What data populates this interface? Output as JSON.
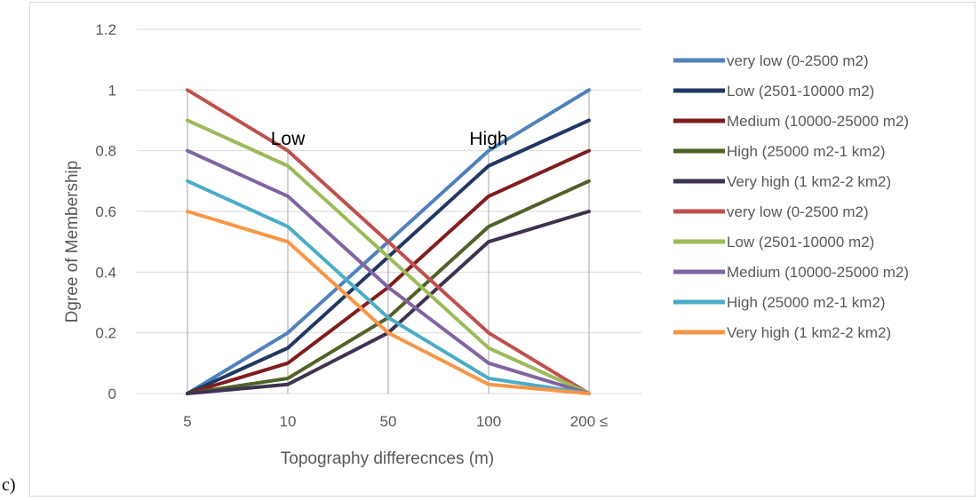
{
  "panel_label": "c)",
  "chart_data": {
    "type": "line",
    "title": "",
    "xlabel": "Topography differecnces (m)",
    "ylabel": "Dgree of Membership",
    "categories": [
      "5",
      "10",
      "50",
      "100",
      "200 ≤"
    ],
    "ylim": [
      0,
      1.2
    ],
    "yticks": [
      "0",
      "0.2",
      "0.4",
      "0.6",
      "0.8",
      "1",
      "1.2"
    ],
    "grid": "horizontal and vertical",
    "legend_position": "right",
    "annotations": [
      {
        "text": "Low",
        "x": "10",
        "y": 0.82
      },
      {
        "text": "High",
        "x": "100",
        "y": 0.82
      }
    ],
    "series": [
      {
        "name": "very low (0-2500 m2)",
        "color": "#4f81bd",
        "values": [
          0,
          0.2,
          0.5,
          0.8,
          1.0
        ]
      },
      {
        "name": "Low (2501-10000 m2)",
        "color": "#1f3864",
        "values": [
          0,
          0.15,
          0.45,
          0.75,
          0.9
        ]
      },
      {
        "name": "Medium (10000-25000 m2)",
        "color": "#7f1d1d",
        "values": [
          0,
          0.1,
          0.35,
          0.65,
          0.8
        ]
      },
      {
        "name": "High (25000 m2-1 km2)",
        "color": "#4f6228",
        "values": [
          0,
          0.05,
          0.25,
          0.55,
          0.7
        ]
      },
      {
        "name": "Very high (1 km2-2 km2)",
        "color": "#3f3151",
        "values": [
          0,
          0.03,
          0.2,
          0.5,
          0.6
        ]
      },
      {
        "name": "very low (0-2500 m2)",
        "color": "#c0504d",
        "values": [
          1.0,
          0.8,
          0.5,
          0.2,
          0
        ]
      },
      {
        "name": "Low (2501-10000 m2)",
        "color": "#9bbb59",
        "values": [
          0.9,
          0.75,
          0.45,
          0.15,
          0
        ]
      },
      {
        "name": "Medium (10000-25000 m2)",
        "color": "#8064a2",
        "values": [
          0.8,
          0.65,
          0.35,
          0.1,
          0
        ]
      },
      {
        "name": "High (25000 m2-1 km2)",
        "color": "#4bacc6",
        "values": [
          0.7,
          0.55,
          0.25,
          0.05,
          0
        ]
      },
      {
        "name": "Very high (1 km2-2 km2)",
        "color": "#f79646",
        "values": [
          0.6,
          0.5,
          0.2,
          0.03,
          0
        ]
      }
    ]
  }
}
